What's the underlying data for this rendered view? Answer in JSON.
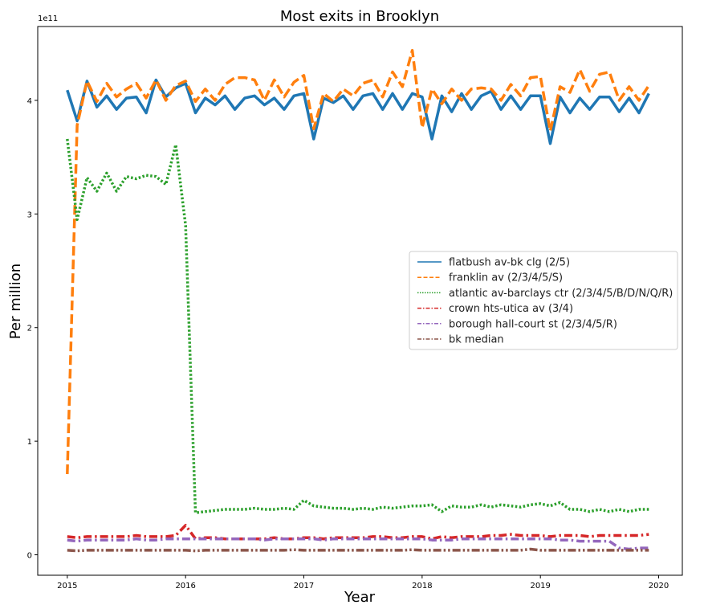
{
  "chart_data": {
    "type": "line",
    "title": "Most exits in Brooklyn",
    "xlabel": "Year",
    "ylabel": "Per million",
    "y_offset_text": "1e11",
    "xlim": [
      2014.75,
      2020.2
    ],
    "ylim": [
      -0.18,
      4.65
    ],
    "xticks": [
      2015,
      2016,
      2017,
      2018,
      2019,
      2020
    ],
    "xtick_labels": [
      "2015",
      "2016",
      "2017",
      "2018",
      "2019",
      "2020"
    ],
    "yticks": [
      0,
      1,
      2,
      3,
      4
    ],
    "ytick_labels": [
      "0",
      "1",
      "2",
      "3",
      "4"
    ],
    "grid": false,
    "legend_position": "center-right",
    "series": [
      {
        "name": "flatbush av-bk clg (2/5)",
        "color": "#1f77b4",
        "dash": "solid",
        "values": [
          4.09,
          3.82,
          4.17,
          3.94,
          4.04,
          3.92,
          4.02,
          4.03,
          3.89,
          4.18,
          4.03,
          4.11,
          4.15,
          3.89,
          4.02,
          3.96,
          4.04,
          3.92,
          4.02,
          4.04,
          3.96,
          4.02,
          3.92,
          4.04,
          4.06,
          3.66,
          4.02,
          3.98,
          4.04,
          3.92,
          4.04,
          4.06,
          3.92,
          4.06,
          3.92,
          4.06,
          4.03,
          3.66,
          4.04,
          3.9,
          4.06,
          3.92,
          4.04,
          4.08,
          3.92,
          4.04,
          3.92,
          4.04,
          4.04,
          3.62,
          4.03,
          3.89,
          4.02,
          3.92,
          4.03,
          4.03,
          3.9,
          4.02,
          3.89,
          4.06
        ]
      },
      {
        "name": "franklin av (2/3/4/5/S)",
        "color": "#ff7f0e",
        "dash": "dashed",
        "values": [
          0.71,
          3.78,
          4.17,
          3.99,
          4.15,
          4.03,
          4.1,
          4.15,
          4.02,
          4.18,
          4.0,
          4.13,
          4.17,
          3.99,
          4.1,
          4.0,
          4.14,
          4.2,
          4.2,
          4.18,
          4.0,
          4.18,
          4.03,
          4.16,
          4.22,
          3.75,
          4.06,
          3.99,
          4.1,
          4.04,
          4.15,
          4.18,
          4.03,
          4.25,
          4.12,
          4.44,
          3.76,
          4.1,
          3.97,
          4.1,
          4.0,
          4.1,
          4.11,
          4.1,
          4.0,
          4.14,
          4.04,
          4.2,
          4.21,
          3.73,
          4.12,
          4.07,
          4.27,
          4.08,
          4.23,
          4.25,
          4.0,
          4.12,
          4.0,
          4.13
        ]
      },
      {
        "name": "atlantic av-barclays ctr (2/3/4/5/B/D/N/Q/R)",
        "color": "#2ca02c",
        "dash": "dotted",
        "values": [
          3.66,
          2.95,
          3.32,
          3.2,
          3.36,
          3.2,
          3.33,
          3.31,
          3.34,
          3.33,
          3.26,
          3.61,
          2.9,
          0.37,
          0.38,
          0.39,
          0.4,
          0.4,
          0.4,
          0.41,
          0.4,
          0.4,
          0.41,
          0.4,
          0.48,
          0.43,
          0.42,
          0.41,
          0.41,
          0.4,
          0.41,
          0.4,
          0.42,
          0.41,
          0.42,
          0.43,
          0.43,
          0.44,
          0.38,
          0.43,
          0.42,
          0.42,
          0.44,
          0.42,
          0.44,
          0.43,
          0.42,
          0.44,
          0.45,
          0.43,
          0.46,
          0.4,
          0.4,
          0.38,
          0.4,
          0.38,
          0.4,
          0.38,
          0.4,
          0.4
        ]
      },
      {
        "name": "crown hts-utica av (3/4)",
        "color": "#d62728",
        "dash": "dashdot",
        "values": [
          0.16,
          0.15,
          0.16,
          0.16,
          0.16,
          0.16,
          0.16,
          0.17,
          0.16,
          0.16,
          0.16,
          0.17,
          0.26,
          0.14,
          0.15,
          0.15,
          0.14,
          0.14,
          0.14,
          0.14,
          0.14,
          0.15,
          0.14,
          0.14,
          0.15,
          0.15,
          0.14,
          0.15,
          0.15,
          0.15,
          0.15,
          0.16,
          0.16,
          0.15,
          0.15,
          0.16,
          0.16,
          0.14,
          0.16,
          0.15,
          0.16,
          0.16,
          0.16,
          0.17,
          0.17,
          0.18,
          0.17,
          0.17,
          0.17,
          0.16,
          0.17,
          0.17,
          0.17,
          0.16,
          0.17,
          0.17,
          0.17,
          0.17,
          0.17,
          0.18
        ]
      },
      {
        "name": "borough hall-court st (2/3/4/5/R)",
        "color": "#9467bd",
        "dash": "dashdot",
        "values": [
          0.13,
          0.12,
          0.13,
          0.13,
          0.13,
          0.13,
          0.13,
          0.14,
          0.13,
          0.13,
          0.14,
          0.14,
          0.14,
          0.14,
          0.14,
          0.14,
          0.14,
          0.14,
          0.14,
          0.14,
          0.13,
          0.14,
          0.14,
          0.14,
          0.14,
          0.14,
          0.13,
          0.14,
          0.14,
          0.14,
          0.14,
          0.14,
          0.14,
          0.14,
          0.14,
          0.14,
          0.14,
          0.13,
          0.13,
          0.13,
          0.14,
          0.14,
          0.14,
          0.14,
          0.14,
          0.14,
          0.14,
          0.14,
          0.14,
          0.14,
          0.13,
          0.13,
          0.12,
          0.12,
          0.12,
          0.12,
          0.06,
          0.05,
          0.06,
          0.06
        ]
      },
      {
        "name": "bk median",
        "color": "#8c564b",
        "dash": "dashdotdot",
        "values": [
          0.04,
          0.035,
          0.04,
          0.04,
          0.04,
          0.04,
          0.04,
          0.04,
          0.04,
          0.04,
          0.04,
          0.04,
          0.04,
          0.035,
          0.04,
          0.04,
          0.04,
          0.04,
          0.04,
          0.04,
          0.04,
          0.04,
          0.04,
          0.045,
          0.04,
          0.04,
          0.04,
          0.04,
          0.04,
          0.04,
          0.04,
          0.04,
          0.04,
          0.04,
          0.04,
          0.045,
          0.04,
          0.04,
          0.04,
          0.04,
          0.04,
          0.04,
          0.04,
          0.04,
          0.04,
          0.04,
          0.04,
          0.05,
          0.04,
          0.04,
          0.04,
          0.04,
          0.04,
          0.04,
          0.04,
          0.04,
          0.04,
          0.04,
          0.04,
          0.04
        ]
      }
    ]
  }
}
